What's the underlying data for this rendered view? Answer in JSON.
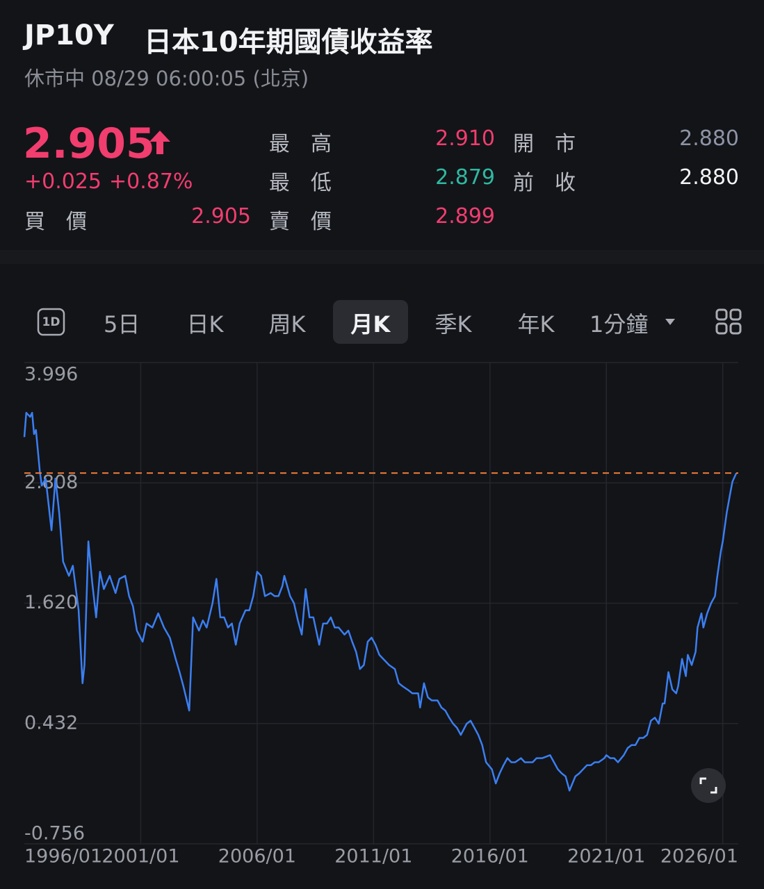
{
  "header": {
    "symbol": "JP10Y",
    "name": "日本10年期國債收益率",
    "status": "休市中 08/29 06:00:05 (北京)"
  },
  "quote": {
    "price": "2.905",
    "price_color": "#f23d6f",
    "change": "+0.025",
    "change_pct": "+0.87%",
    "stats": [
      {
        "label": "最高",
        "value": "2.910",
        "color": "#f23d6f"
      },
      {
        "label": "開市",
        "value": "2.880",
        "color": "#8e94a6"
      },
      {
        "label": "最低",
        "value": "2.879",
        "color": "#2fb8a2"
      },
      {
        "label": "前收",
        "value": "2.880",
        "color": "#f2f3f5"
      },
      {
        "label": "買價",
        "value": "2.905",
        "color": "#f23d6f"
      },
      {
        "label": "賣價",
        "value": "2.899",
        "color": "#f23d6f"
      }
    ]
  },
  "tabs": {
    "icon_label": "1D",
    "items": [
      "5日",
      "日K",
      "周K",
      "月K",
      "季K",
      "年K",
      "1分鐘"
    ],
    "active": 3
  },
  "chart_data": {
    "type": "line",
    "color": "#3b7ff2",
    "grid": true,
    "reference_line": {
      "value": 2.905,
      "color": "#f07b36"
    },
    "xlim": [
      "1996/01",
      "2026/09"
    ],
    "xticks": [
      "1996/01",
      "2001/01",
      "2006/01",
      "2011/01",
      "2016/01",
      "2021/01",
      "2026/01"
    ],
    "ylim": [
      -0.756,
      3.996
    ],
    "yticks": [
      3.996,
      2.808,
      {
        "value": 1.62,
        "label": "1.620"
      },
      0.432,
      -0.756
    ],
    "x": [
      "1996/01",
      "1996/02",
      "1996/04",
      "1996/05",
      "1996/06",
      "1996/07",
      "1996/09",
      "1996/10",
      "1996/12",
      "1997/02",
      "1997/03",
      "1997/05",
      "1997/07",
      "1997/09",
      "1997/12",
      "1998/02",
      "1998/05",
      "1998/07",
      "1998/08",
      "1998/10",
      "1998/12",
      "1999/02",
      "1999/04",
      "1999/06",
      "1999/09",
      "1999/12",
      "2000/02",
      "2000/05",
      "2000/07",
      "2000/09",
      "2000/11",
      "2001/02",
      "2001/04",
      "2001/07",
      "2001/10",
      "2002/01",
      "2002/04",
      "2002/07",
      "2002/09",
      "2002/11",
      "2003/02",
      "2003/04",
      "2003/07",
      "2003/09",
      "2003/11",
      "2004/02",
      "2004/04",
      "2004/06",
      "2004/08",
      "2004/10",
      "2004/12",
      "2005/02",
      "2005/04",
      "2005/07",
      "2005/09",
      "2005/11",
      "2006/01",
      "2006/03",
      "2006/05",
      "2006/08",
      "2006/10",
      "2006/12",
      "2007/02",
      "2007/03",
      "2007/06",
      "2007/08",
      "2007/10",
      "2007/12",
      "2008/02",
      "2008/04",
      "2008/06",
      "2008/09",
      "2008/11",
      "2009/01",
      "2009/03",
      "2009/05",
      "2009/07",
      "2009/10",
      "2009/12",
      "2010/02",
      "2010/04",
      "2010/06",
      "2010/08",
      "2010/10",
      "2010/12",
      "2011/02",
      "2011/04",
      "2011/06",
      "2011/09",
      "2011/12",
      "2012/02",
      "2012/04",
      "2012/07",
      "2012/09",
      "2012/12",
      "2013/01",
      "2013/03",
      "2013/05",
      "2013/07",
      "2013/10",
      "2013/12",
      "2014/02",
      "2014/04",
      "2014/06",
      "2014/08",
      "2014/10",
      "2015/01",
      "2015/03",
      "2015/05",
      "2015/07",
      "2015/09",
      "2015/11",
      "2016/02",
      "2016/04",
      "2016/06",
      "2016/08",
      "2016/10",
      "2016/12",
      "2017/02",
      "2017/05",
      "2017/07",
      "2017/09",
      "2017/11",
      "2018/01",
      "2018/04",
      "2018/08",
      "2018/10",
      "2018/12",
      "2019/02",
      "2019/04",
      "2019/06",
      "2019/09",
      "2019/11",
      "2020/01",
      "2020/03",
      "2020/05",
      "2020/07",
      "2020/09",
      "2020/12",
      "2021/01",
      "2021/03",
      "2021/05",
      "2021/07",
      "2021/10",
      "2021/12",
      "2022/02",
      "2022/04",
      "2022/06",
      "2022/08",
      "2022/10",
      "2022/12",
      "2023/02",
      "2023/04",
      "2023/06",
      "2023/07",
      "2023/09",
      "2023/11",
      "2024/01",
      "2024/02",
      "2024/04",
      "2024/06",
      "2024/07",
      "2024/09",
      "2024/11",
      "2024/12",
      "2025/02",
      "2025/03",
      "2025/05",
      "2025/07",
      "2025/09",
      "2025/10",
      "2025/12",
      "2026/01",
      "2026/03",
      "2026/05",
      "2026/06",
      "2026/08"
    ],
    "values": [
      3.26,
      3.5,
      3.46,
      3.5,
      3.29,
      3.33,
      2.92,
      2.78,
      2.85,
      2.51,
      2.34,
      2.85,
      2.51,
      2.03,
      1.89,
      1.99,
      1.55,
      0.83,
      1.01,
      2.23,
      1.82,
      1.48,
      1.93,
      1.76,
      1.89,
      1.72,
      1.86,
      1.89,
      1.69,
      1.59,
      1.35,
      1.24,
      1.42,
      1.38,
      1.52,
      1.38,
      1.28,
      1.07,
      0.94,
      0.8,
      0.56,
      1.48,
      1.35,
      1.45,
      1.38,
      1.62,
      1.86,
      1.48,
      1.48,
      1.38,
      1.42,
      1.21,
      1.42,
      1.55,
      1.55,
      1.69,
      1.93,
      1.89,
      1.69,
      1.72,
      1.69,
      1.69,
      1.79,
      1.89,
      1.69,
      1.62,
      1.45,
      1.31,
      1.76,
      1.48,
      1.48,
      1.21,
      1.42,
      1.42,
      1.48,
      1.38,
      1.38,
      1.31,
      1.35,
      1.24,
      1.14,
      0.97,
      1.01,
      1.24,
      1.28,
      1.21,
      1.11,
      1.07,
      1.01,
      0.97,
      0.83,
      0.8,
      0.76,
      0.73,
      0.73,
      0.59,
      0.83,
      0.69,
      0.66,
      0.66,
      0.59,
      0.56,
      0.49,
      0.43,
      0.39,
      0.32,
      0.43,
      0.46,
      0.39,
      0.32,
      0.22,
      0.05,
      -0.02,
      -0.16,
      -0.06,
      0.02,
      0.09,
      0.05,
      0.05,
      0.09,
      0.05,
      0.05,
      0.05,
      0.09,
      0.09,
      0.12,
      0.05,
      -0.02,
      -0.06,
      -0.09,
      -0.23,
      -0.09,
      -0.06,
      -0.02,
      0.02,
      0.02,
      0.05,
      0.05,
      0.09,
      0.12,
      0.09,
      0.09,
      0.05,
      0.12,
      0.19,
      0.22,
      0.22,
      0.29,
      0.29,
      0.32,
      0.46,
      0.49,
      0.43,
      0.63,
      0.63,
      0.94,
      0.77,
      0.73,
      0.8,
      1.07,
      0.9,
      1.11,
      1.01,
      1.14,
      1.38,
      1.52,
      1.38,
      1.52,
      1.62,
      1.69,
      1.86,
      2.13,
      2.23,
      2.51,
      2.72,
      2.82,
      2.905
    ]
  }
}
